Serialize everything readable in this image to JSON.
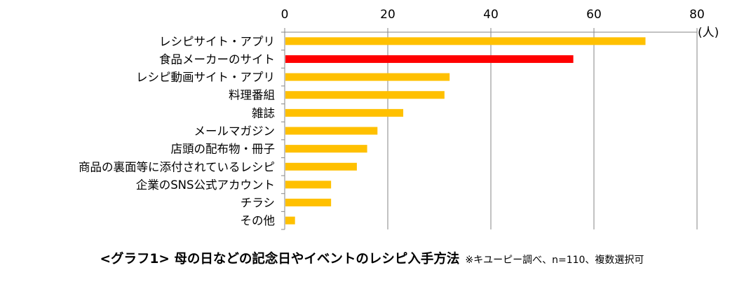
{
  "chart_data": {
    "type": "bar",
    "orientation": "horizontal",
    "categories": [
      "レシピサイト・アプリ",
      "食品メーカーのサイト",
      "レシピ動画サイト・アプリ",
      "料理番組",
      "雑誌",
      "メールマガジン",
      "店頭の配布物・冊子",
      "商品の裏面等に添付されているレシピ",
      "企業のSNS公式アカウント",
      "チラシ",
      "その他"
    ],
    "values": [
      70,
      56,
      32,
      31,
      23,
      18,
      16,
      14,
      9,
      9,
      2
    ],
    "highlight_index": 1,
    "xlim": [
      0,
      80
    ],
    "xticks": [
      "0",
      "20",
      "40",
      "60",
      "80"
    ],
    "unit": "(人)",
    "grid": true,
    "bar_color": "#FFC000",
    "highlight_color": "#FF0000",
    "axis_color": "#868686",
    "title": "<グラフ1> 母の日などの記念日やイベントのレシピ入手方法",
    "note": "※キユーピー調べ、n=110、複数選択可"
  }
}
